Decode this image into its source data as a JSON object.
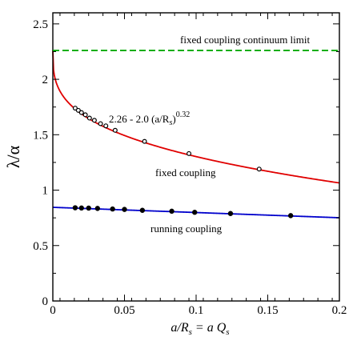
{
  "chart_data": {
    "type": "scatter",
    "title": "",
    "xlabel": {
      "main": "a/R",
      "sub": "s",
      "rest": " = a Q",
      "sub2": "s"
    },
    "ylabel": "λ/α",
    "xlim": [
      0,
      0.2
    ],
    "ylim": [
      0,
      2.6
    ],
    "x_ticks": [
      "0",
      "0.05",
      "0.1",
      "0.15",
      "0.2"
    ],
    "x_tick_values": [
      0,
      0.05,
      0.1,
      0.15,
      0.2
    ],
    "y_ticks": [
      "0",
      "0.5",
      "1",
      "1.5",
      "2",
      "2.5"
    ],
    "y_tick_values": [
      0,
      0.5,
      1,
      1.5,
      2,
      2.5
    ],
    "grid": false,
    "series": [
      {
        "name": "fixed coupling",
        "marker": "open-circle",
        "color": "#e00000",
        "fit": {
          "a": 2.26,
          "b": 2.0,
          "p": 0.32
        },
        "x": [
          0.0156,
          0.0178,
          0.02,
          0.0227,
          0.0256,
          0.029,
          0.0333,
          0.037,
          0.0435,
          0.064,
          0.095,
          0.144
        ],
        "y": [
          1.74,
          1.72,
          1.7,
          1.68,
          1.65,
          1.63,
          1.6,
          1.58,
          1.54,
          1.44,
          1.33,
          1.19
        ]
      },
      {
        "name": "running coupling",
        "marker": "filled-circle",
        "color": "#0000cc",
        "fit": {
          "a": 0.845,
          "slope": -0.47
        },
        "x": [
          0.0156,
          0.02,
          0.025,
          0.0312,
          0.0417,
          0.05,
          0.0625,
          0.083,
          0.099,
          0.124,
          0.166
        ],
        "y": [
          0.841,
          0.839,
          0.838,
          0.835,
          0.83,
          0.826,
          0.818,
          0.81,
          0.8,
          0.789,
          0.77
        ]
      }
    ],
    "reference_line": {
      "y": 2.26,
      "color": "#00aa00",
      "label": "fixed coupling continuum limit"
    },
    "annotations": {
      "fit_formula": {
        "base": "2.26 - 2.0 (a/R",
        "sub": "s",
        "close": ")",
        "sup": "0.32"
      },
      "fixed": "fixed coupling",
      "running": "running coupling"
    }
  }
}
